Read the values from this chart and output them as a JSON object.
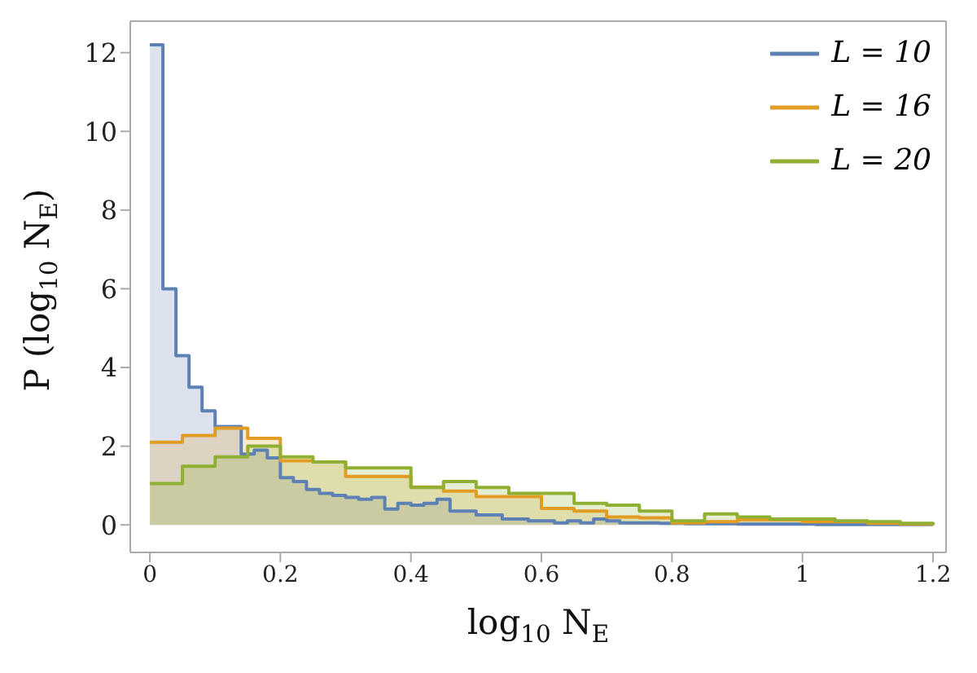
{
  "chart_data": {
    "type": "step",
    "xlabel": "log$_{10}$ N$_{E}$",
    "ylabel": "P (log$_{10}$ N$_{E}$)",
    "series": [
      {
        "name": "L = 10",
        "color": "#5e81b5",
        "x": [
          0,
          0.02,
          0.04,
          0.06,
          0.08,
          0.1,
          0.12,
          0.14,
          0.16,
          0.18,
          0.2,
          0.22,
          0.24,
          0.26,
          0.28,
          0.3,
          0.32,
          0.34,
          0.36,
          0.38,
          0.4,
          0.42,
          0.44,
          0.46,
          0.48,
          0.5,
          0.52,
          0.54,
          0.56,
          0.58,
          0.6,
          0.62,
          0.64,
          0.66,
          0.68,
          0.7,
          0.72,
          0.74,
          0.76,
          0.78,
          0.8,
          0.82,
          0.84,
          0.86,
          0.88,
          0.9,
          0.92,
          0.94,
          0.96,
          0.98,
          1.0,
          1.02,
          1.04,
          1.06,
          1.08,
          1.1,
          1.12,
          1.14,
          1.16,
          1.18,
          1.2
        ],
        "values": [
          12.2,
          6.0,
          4.3,
          3.5,
          2.9,
          2.5,
          2.5,
          1.8,
          1.9,
          1.7,
          1.2,
          1.1,
          0.9,
          0.8,
          0.75,
          0.7,
          0.65,
          0.7,
          0.4,
          0.55,
          0.5,
          0.55,
          0.65,
          0.35,
          0.35,
          0.25,
          0.25,
          0.15,
          0.15,
          0.1,
          0.1,
          0.05,
          0.1,
          0.05,
          0.15,
          0.1,
          0.05,
          0.05,
          0.05,
          0.04,
          0.04,
          0.03,
          0.03,
          0.03,
          0.03,
          0.02,
          0.02,
          0.02,
          0.02,
          0.02,
          0.02,
          0.01,
          0.01,
          0.01,
          0.01,
          0.01,
          0.01,
          0.01,
          0.01,
          0.01,
          0
        ]
      },
      {
        "name": "L = 16",
        "color": "#e19c24",
        "x": [
          0,
          0.05,
          0.1,
          0.15,
          0.2,
          0.25,
          0.3,
          0.35,
          0.4,
          0.45,
          0.5,
          0.55,
          0.6,
          0.65,
          0.7,
          0.75,
          0.8,
          0.85,
          0.9,
          0.95,
          1.0,
          1.05,
          1.1,
          1.15,
          1.2
        ],
        "values": [
          2.1,
          2.27,
          2.46,
          2.2,
          1.63,
          1.6,
          1.23,
          1.23,
          0.96,
          0.86,
          0.72,
          0.72,
          0.42,
          0.35,
          0.2,
          0.18,
          0.05,
          0.08,
          0.13,
          0.13,
          0.08,
          0.08,
          0.04,
          0.02,
          0
        ]
      },
      {
        "name": "L = 20",
        "color": "#8fb032",
        "x": [
          0,
          0.05,
          0.1,
          0.15,
          0.2,
          0.25,
          0.3,
          0.35,
          0.4,
          0.45,
          0.5,
          0.55,
          0.6,
          0.65,
          0.7,
          0.75,
          0.8,
          0.85,
          0.9,
          0.95,
          1.0,
          1.05,
          1.1,
          1.15,
          1.2
        ],
        "values": [
          1.05,
          1.49,
          1.73,
          2.0,
          1.73,
          1.6,
          1.45,
          1.45,
          0.95,
          1.1,
          0.95,
          0.8,
          0.8,
          0.55,
          0.5,
          0.35,
          0.1,
          0.28,
          0.2,
          0.15,
          0.15,
          0.1,
          0.08,
          0.04,
          0
        ]
      }
    ],
    "xlim": [
      -0.03,
      1.22
    ],
    "xticks": [
      0,
      0.2,
      0.4,
      0.6,
      0.8,
      1,
      1.2
    ],
    "ylim": [
      -0.7,
      12.8
    ],
    "yticks": [
      0,
      2,
      4,
      6,
      8,
      10,
      12
    ],
    "legend": "top right"
  }
}
